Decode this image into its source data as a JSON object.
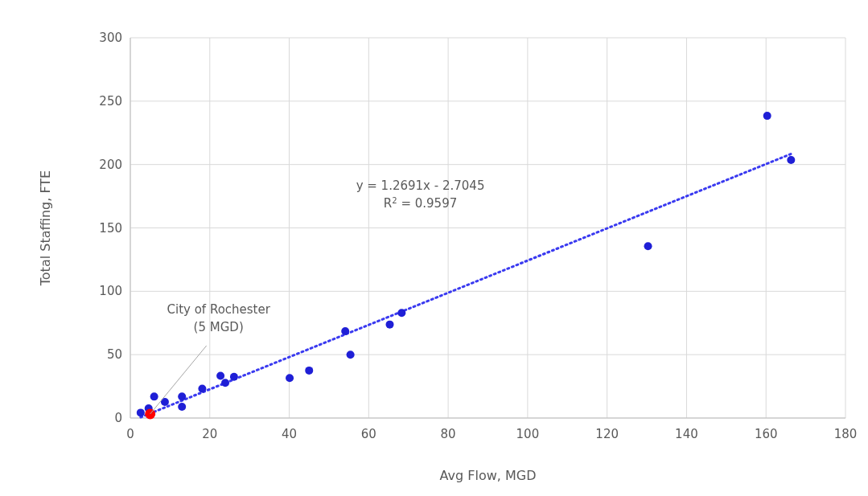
{
  "chart_data": {
    "type": "scatter",
    "xlabel": "Avg Flow, MGD",
    "ylabel": "Total Staffing, FTE",
    "xlim": [
      0,
      180
    ],
    "xticks": [
      0,
      20,
      40,
      60,
      80,
      100,
      120,
      140,
      160,
      180
    ],
    "ylim": [
      0,
      300
    ],
    "yticks": [
      0,
      50,
      100,
      150,
      200,
      250,
      300
    ],
    "grid": true,
    "marker": "circle",
    "series": [
      {
        "color": "#1f1fd6",
        "x": [
          2.6,
          4.6,
          6.0,
          8.7,
          13.0,
          13.0,
          18.1,
          22.7,
          23.9,
          26.1,
          40.1,
          45.0,
          54.1,
          55.4,
          65.3,
          68.3,
          130.3,
          160.3,
          166.3
        ],
        "values": [
          4.2,
          7.6,
          16.9,
          12.7,
          16.9,
          8.9,
          23.2,
          33.3,
          27.8,
          32.5,
          31.6,
          37.5,
          68.5,
          50,
          73.8,
          82.9,
          135.6,
          238.4,
          203.6
        ]
      },
      {
        "color": "#ff0000",
        "x": [
          5
        ],
        "values": [
          3.2
        ]
      },
      {
        "type": "line",
        "color": "#3a3af0",
        "line_style": "dotted",
        "marker": "none",
        "x": [
          2.6,
          166.3
        ],
        "values": [
          0.6,
          208.4
        ]
      }
    ],
    "annotations": [
      {
        "text": "City of Rochester\n(5 MGD)",
        "x": 5,
        "y": 3.2
      },
      "y = 1.2691x - 2.7045\nR$^{2}$ = 0.9597"
    ]
  }
}
